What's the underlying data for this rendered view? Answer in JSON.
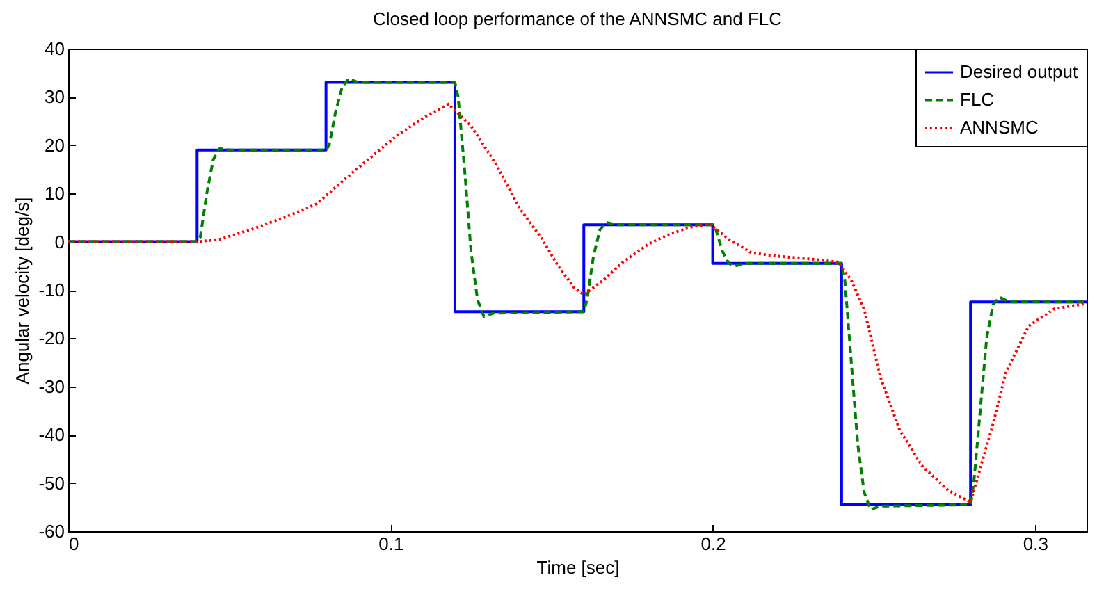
{
  "chart_data": {
    "type": "line",
    "title": "Closed loop performance of the ANNSMC and FLC",
    "xlabel": "Time [sec]",
    "ylabel": "Angular velocity [deg/s]",
    "xlim": [
      0,
      0.316
    ],
    "ylim": [
      -60,
      40
    ],
    "xticks": [
      0,
      0.1,
      0.2,
      0.3
    ],
    "yticks": [
      -60,
      -50,
      -40,
      -30,
      -20,
      -10,
      0,
      10,
      20,
      30,
      40
    ],
    "grid": false,
    "legend": "top right",
    "series": [
      {
        "name": "Desired output",
        "color": "#0000ff",
        "line_style": "solid",
        "x": [
          0,
          0.04,
          0.04,
          0.08,
          0.08,
          0.12,
          0.12,
          0.16,
          0.16,
          0.2,
          0.2,
          0.24,
          0.24,
          0.28,
          0.28,
          0.316
        ],
        "values": [
          0,
          0,
          19,
          19,
          33,
          33,
          -14.5,
          -14.5,
          3.5,
          3.5,
          -4.5,
          -4.5,
          -54.5,
          -54.5,
          -12.5,
          -12.5
        ]
      },
      {
        "name": "FLC",
        "color": "#008000",
        "line_style": "dashed",
        "x": [
          0,
          0.04,
          0.041,
          0.043,
          0.045,
          0.047,
          0.05,
          0.08,
          0.081,
          0.083,
          0.085,
          0.087,
          0.09,
          0.12,
          0.121,
          0.123,
          0.125,
          0.127,
          0.129,
          0.132,
          0.16,
          0.161,
          0.163,
          0.165,
          0.167,
          0.17,
          0.2,
          0.201,
          0.203,
          0.205,
          0.207,
          0.21,
          0.24,
          0.241,
          0.243,
          0.245,
          0.247,
          0.249,
          0.252,
          0.28,
          0.281,
          0.283,
          0.285,
          0.287,
          0.289,
          0.292,
          0.316
        ],
        "values": [
          0,
          0,
          1,
          10,
          17,
          19.3,
          19,
          19,
          20,
          27,
          32,
          33.8,
          33,
          33,
          30,
          15,
          -2,
          -12,
          -15.5,
          -14.8,
          -14.5,
          -12,
          -3,
          2.5,
          4,
          3.5,
          3.5,
          2.5,
          -2,
          -4.5,
          -5,
          -4.5,
          -4.5,
          -8,
          -25,
          -42,
          -52,
          -55.5,
          -54.8,
          -54.5,
          -50,
          -35,
          -20,
          -13,
          -11.5,
          -12.5,
          -12.5
        ]
      },
      {
        "name": "ANNSMC",
        "color": "#ff0000",
        "line_style": "dotted",
        "x": [
          0,
          0.04,
          0.047,
          0.057,
          0.067,
          0.077,
          0.088,
          0.102,
          0.111,
          0.118,
          0.125,
          0.133,
          0.14,
          0.147,
          0.152,
          0.157,
          0.16,
          0.166,
          0.172,
          0.18,
          0.186,
          0.193,
          0.199,
          0.205,
          0.212,
          0.22,
          0.229,
          0.239,
          0.243,
          0.247,
          0.252,
          0.258,
          0.265,
          0.273,
          0.28,
          0.283,
          0.287,
          0.291,
          0.298,
          0.306,
          0.316
        ],
        "values": [
          0,
          0,
          0.5,
          2.6,
          5,
          7.8,
          14.2,
          22,
          26,
          28.5,
          24,
          15.8,
          7,
          0.6,
          -5,
          -9.5,
          -11,
          -8,
          -4.3,
          -0.5,
          1.4,
          3,
          3.7,
          0.5,
          -2.3,
          -3,
          -3.5,
          -4.2,
          -8,
          -14,
          -28,
          -39,
          -46.5,
          -51.5,
          -54,
          -47,
          -37.7,
          -27,
          -17.5,
          -13.9,
          -12.8
        ]
      }
    ]
  }
}
